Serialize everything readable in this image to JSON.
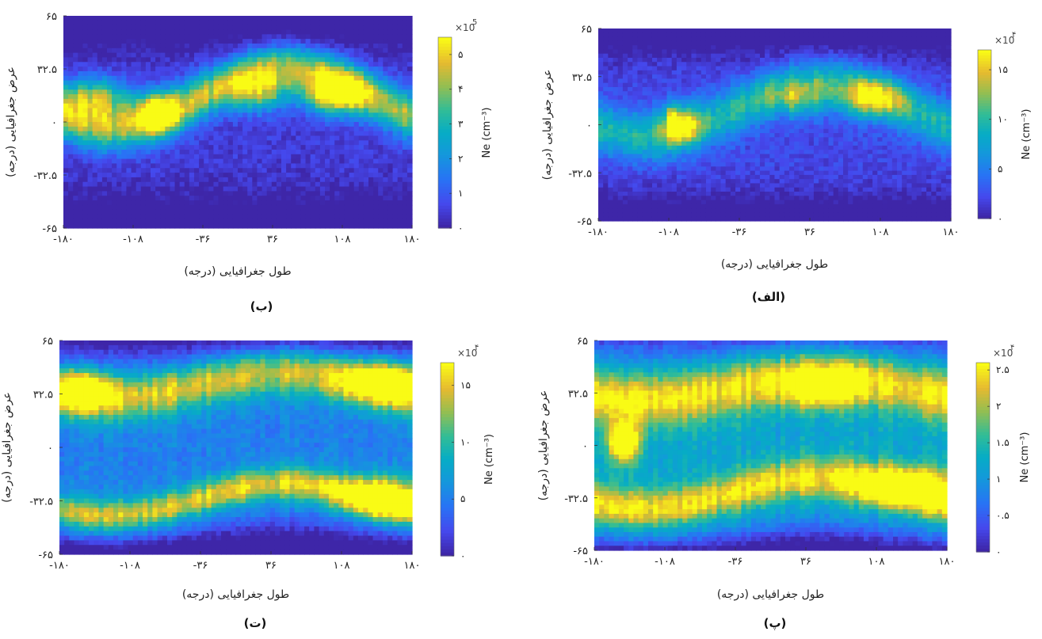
{
  "chart_data": [
    {
      "type": "heatmap",
      "caption": "(ب)",
      "xlabel": "طول جغرافیایی (درجه)",
      "ylabel": "عرض جغرافیایی (درجه)",
      "xticks": [
        "-۱۸۰",
        "-۱۰۸",
        "-۳۶",
        "۳۶",
        "۱۰۸",
        "۱۸۰"
      ],
      "yticks": [
        "۶۵",
        "۳۲.۵",
        "۰",
        "-۳۲.۵",
        "-۶۵"
      ],
      "xlim": [
        -180,
        180
      ],
      "ylim": [
        -65,
        65
      ],
      "colorbar": {
        "label": "Ne (cm⁻³)",
        "multiplier": "×10",
        "exponent": "5",
        "ticks": [
          "۵",
          "۴",
          "۳",
          "۲",
          "۱",
          "۰"
        ],
        "tick_values": [
          5,
          4,
          3,
          2,
          1,
          0
        ],
        "range": [
          0,
          5.5
        ]
      },
      "pattern": {
        "crest_offset": 15,
        "crest_amp": 18,
        "crest_width": 14,
        "crest_strength": 0.72,
        "hot_spots": [
          {
            "lon": -150,
            "lat": 15,
            "strength": 0.62,
            "spread_lon": 38
          },
          {
            "lon": -80,
            "lat": 5,
            "strength": 0.7,
            "spread_lon": 22
          },
          {
            "lon": 20,
            "lat": 18,
            "strength": 0.52,
            "spread_lon": 32
          },
          {
            "lon": 100,
            "lat": 17,
            "strength": 0.85,
            "spread_lon": 30
          }
        ],
        "south_crest": null,
        "background": 0.08,
        "depletion": null
      }
    },
    {
      "type": "heatmap",
      "caption": "(الف)",
      "xlabel": "طول جغرافیایی (درجه)",
      "ylabel": "عرض جغرافیایی (درجه)",
      "xticks": [
        "-۱۸۰",
        "-۱۰۸",
        "-۳۶",
        "۳۶",
        "۱۰۸",
        "۱۸۰"
      ],
      "yticks": [
        "۶۵",
        "۳۲.۵",
        "۰",
        "-۳۲.۵",
        "-۶۵"
      ],
      "xlim": [
        -180,
        180
      ],
      "ylim": [
        -65,
        65
      ],
      "colorbar": {
        "label": "Ne (cm⁻³)",
        "multiplier": "×10",
        "exponent": "۴",
        "ticks": [
          "۱۵",
          "۱۰",
          "۵",
          "۰"
        ],
        "tick_values": [
          15,
          10,
          5,
          0
        ],
        "range": [
          0,
          17
        ]
      },
      "pattern": {
        "crest_offset": 10,
        "crest_amp": 18,
        "crest_width": 16,
        "crest_strength": 0.45,
        "hot_spots": [
          {
            "lon": -95,
            "lat": 0,
            "strength": 0.6,
            "spread_lon": 18
          },
          {
            "lon": -105,
            "lat": 2,
            "strength": 0.9,
            "spread_lon": 3
          },
          {
            "lon": 100,
            "lat": 18,
            "strength": 0.62,
            "spread_lon": 28
          },
          {
            "lon": 25,
            "lat": 18,
            "strength": 0.35,
            "spread_lon": 30
          }
        ],
        "south_crest": null,
        "background": 0.12,
        "depletion": null
      }
    },
    {
      "type": "heatmap",
      "caption": "(ت)",
      "xlabel": "طول جغرافیایی (درجه)",
      "ylabel": "عرض جغرافیایی (درجه)",
      "xticks": [
        "-۱۸۰",
        "-۱۰۸",
        "-۳۶",
        "۳۶",
        "۱۰۸",
        "۱۸۰"
      ],
      "yticks": [
        "۶۵",
        "۳۲.۵",
        "۰",
        "-۳۲.۵",
        "-۶۵"
      ],
      "xlim": [
        -180,
        180
      ],
      "ylim": [
        -65,
        65
      ],
      "colorbar": {
        "label": "Ne (cm⁻³)",
        "multiplier": "×10",
        "exponent": "۴",
        "ticks": [
          "۱۵",
          "۱۰",
          "۵",
          "۰"
        ],
        "tick_values": [
          15,
          10,
          5,
          0
        ],
        "range": [
          0,
          17
        ]
      },
      "pattern": {
        "crest_offset": 38,
        "crest_amp": 8,
        "crest_width": 14,
        "crest_strength": 0.62,
        "hot_spots": [
          {
            "lon": 150,
            "lat": -30,
            "strength": 0.82,
            "spread_lon": 40
          },
          {
            "lon": 150,
            "lat": 40,
            "strength": 0.72,
            "spread_lon": 40
          },
          {
            "lon": -160,
            "lat": 35,
            "strength": 0.68,
            "spread_lon": 30
          }
        ],
        "south_crest": {
          "offset": -32,
          "amp": 10,
          "width": 10,
          "strength": 0.62
        },
        "background": 0.3,
        "depletion": {
          "lat_min": -65,
          "lat_max": -48,
          "amp": 8
        }
      }
    },
    {
      "type": "heatmap",
      "caption": "(پ)",
      "xlabel": "طول جغرافیایی (درجه)",
      "ylabel": "عرض جغرافیایی (درجه)",
      "xticks": [
        "-۱۸۰",
        "-۱۰۸",
        "-۳۶",
        "۳۶",
        "۱۰۸",
        "۱۸۰"
      ],
      "yticks": [
        "۶۵",
        "۳۲.۵",
        "۰",
        "-۳۲.۵",
        "-۶۵"
      ],
      "xlim": [
        -180,
        180
      ],
      "ylim": [
        -65,
        65
      ],
      "colorbar": {
        "label": "Ne (cm⁻³)",
        "multiplier": "×10",
        "exponent": "۴",
        "ticks": [
          "۲.۵",
          "۲",
          "۱.۵",
          "۱",
          "۰.۵",
          "۰"
        ],
        "tick_values": [
          2.5,
          2,
          1.5,
          1,
          0.5,
          0
        ],
        "range": [
          0,
          2.6
        ]
      },
      "pattern": {
        "crest_offset": 36,
        "crest_amp": 8,
        "crest_width": 16,
        "crest_strength": 0.55,
        "hot_spots": [
          {
            "lon": -150,
            "lat": 2,
            "strength": 0.85,
            "spread_lon": 15
          },
          {
            "lon": 140,
            "lat": -25,
            "strength": 0.72,
            "spread_lon": 45
          },
          {
            "lon": 50,
            "lat": 35,
            "strength": 0.58,
            "spread_lon": 40
          }
        ],
        "south_crest": {
          "offset": -30,
          "amp": 10,
          "width": 12,
          "strength": 0.55
        },
        "background": 0.45,
        "depletion": {
          "lat_min": -65,
          "lat_max": -50,
          "amp": 8
        }
      }
    }
  ]
}
